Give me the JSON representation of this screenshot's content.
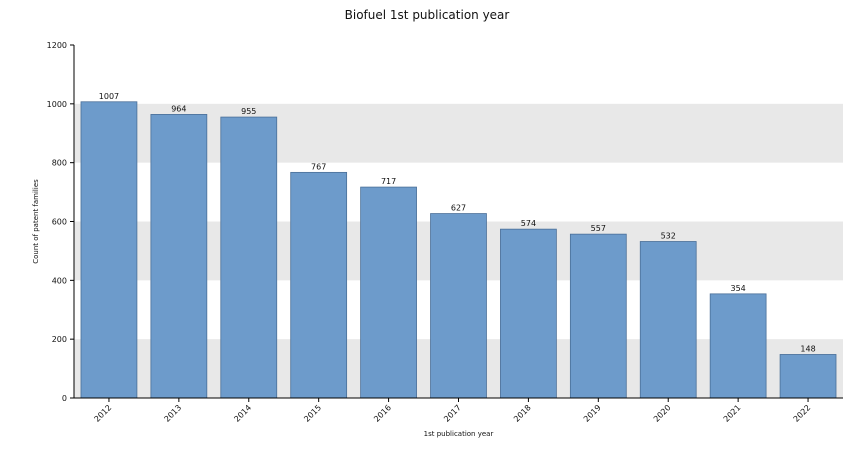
{
  "chart_data": {
    "type": "bar",
    "title": "Biofuel 1st publication year",
    "xlabel": "1st publication year",
    "ylabel": "Count of patent families",
    "categories": [
      "2012",
      "2013",
      "2014",
      "2015",
      "2016",
      "2017",
      "2018",
      "2019",
      "2020",
      "2021",
      "2022"
    ],
    "values": [
      1007,
      964,
      955,
      767,
      717,
      627,
      574,
      557,
      532,
      354,
      148
    ],
    "ylim": [
      0,
      1200
    ],
    "yticks": [
      0,
      200,
      400,
      600,
      800,
      1000,
      1200
    ],
    "grid": "alternating horizontal bands",
    "legend": "none",
    "bar_color": "#6d9bcb",
    "bar_edge_color": "#4a6f98",
    "band_color": "#e8e8e8"
  }
}
